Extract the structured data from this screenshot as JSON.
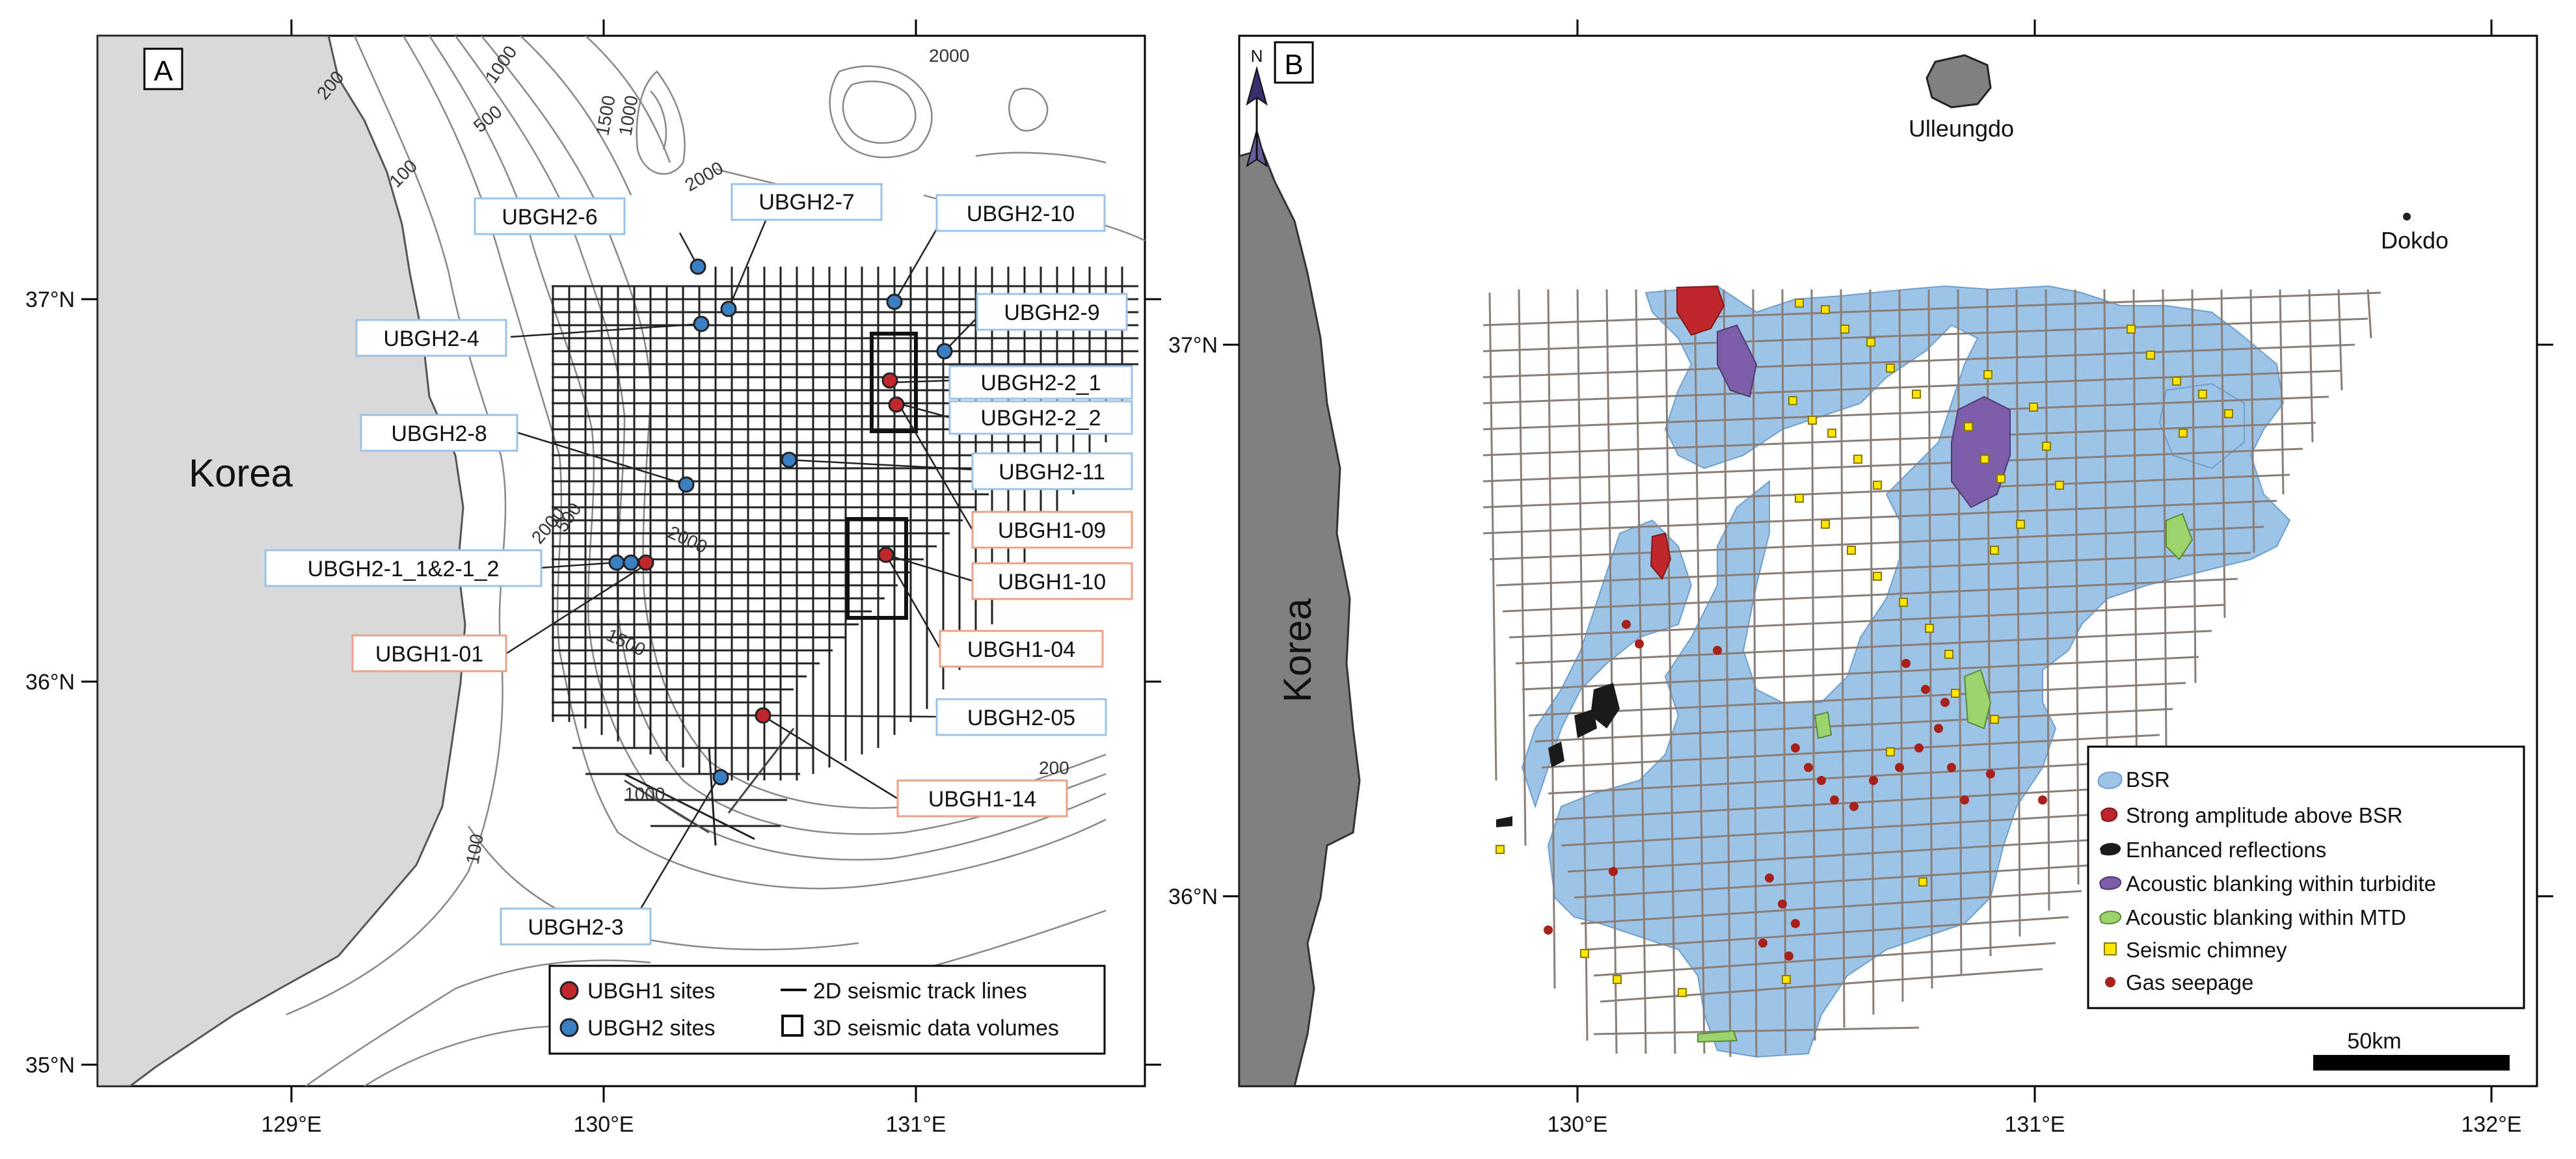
{
  "panelA": {
    "panel_letter": "A",
    "land_label": "Korea",
    "lon_ticks": [
      "129°E",
      "130°E",
      "131°E"
    ],
    "lat_ticks": [
      "37°N",
      "36°N",
      "35°N"
    ],
    "contours": {
      "c2000_ne": "2000",
      "c1000_nw": "1000",
      "c500_nw": "500",
      "c200_nw": "200",
      "c100_nw": "100",
      "c1500_n": "1500",
      "c1000_n": "1000",
      "c2000_mid": "2000",
      "c2000_w": "2000",
      "c500_w": "500",
      "c2000_c": "2000",
      "c1500_s": "1500",
      "c200_se": "200",
      "c1000_s": "1000",
      "c100_s": "100"
    },
    "sites": {
      "ubgh2_6": "UBGH2-6",
      "ubgh2_7": "UBGH2-7",
      "ubgh2_10": "UBGH2-10",
      "ubgh2_9": "UBGH2-9",
      "ubgh2_4": "UBGH2-4",
      "ubgh2_2_1": "UBGH2-2_1",
      "ubgh2_2_2": "UBGH2-2_2",
      "ubgh2_8": "UBGH2-8",
      "ubgh2_11": "UBGH2-11",
      "ubgh1_09": "UBGH1-09",
      "ubgh2_1": "UBGH2-1_1&2-1_2",
      "ubgh1_10": "UBGH1-10",
      "ubgh1_01": "UBGH1-01",
      "ubgh1_04": "UBGH1-04",
      "ubgh2_05": "UBGH2-05",
      "ubgh1_14": "UBGH1-14",
      "ubgh2_3": "UBGH2-3"
    },
    "legend": {
      "ubgh1": "UBGH1 sites",
      "ubgh2": "UBGH2 sites",
      "lines2d": "2D seismic track lines",
      "volumes3d": "3D seismic data volumes"
    }
  },
  "panelB": {
    "panel_letter": "B",
    "north": "N",
    "land_label": "Korea",
    "islands": {
      "ulleungdo": "Ulleungdo",
      "dokdo": "Dokdo"
    },
    "lon_ticks": [
      "130°E",
      "131°E",
      "132°E"
    ],
    "lat_ticks": [
      "37°N",
      "36°N"
    ],
    "scale_label": "50km",
    "legend": [
      {
        "label": "BSR",
        "color": "#9dc3e6"
      },
      {
        "label": "Strong amplitude above BSR",
        "color": "#c0262b"
      },
      {
        "label": "Enhanced reflections",
        "color": "#1a1a1a"
      },
      {
        "label": "Acoustic blanking within turbidite",
        "color": "#7b5ea7"
      },
      {
        "label": "Acoustic blanking within MTD",
        "color": "#9bd46a"
      },
      {
        "label": "Seismic chimney",
        "color": "#ffe600"
      },
      {
        "label": "Gas seepage",
        "color": "#a8201a"
      }
    ]
  },
  "colors": {
    "land": "#d9d9d9",
    "bsr": "#9dc3e6",
    "ubgh1_dot": "#c0262b",
    "ubgh2_dot": "#3a7fc1",
    "box_ubgh1": "#e8a38a",
    "box_ubgh2": "#9cc3e6"
  }
}
